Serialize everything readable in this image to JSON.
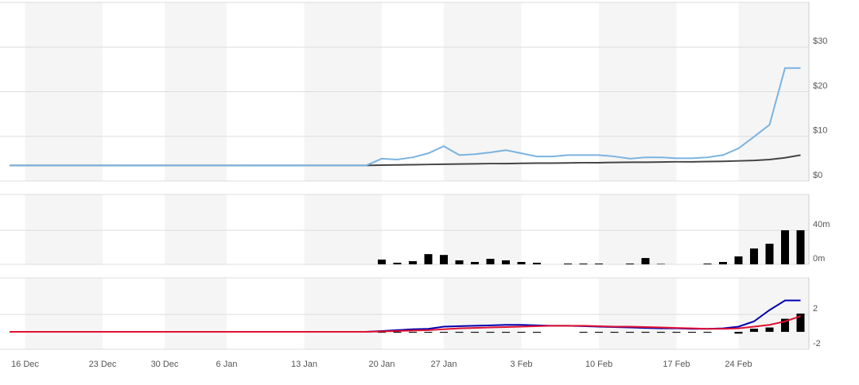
{
  "chart_data": [
    {
      "type": "line",
      "ylim": [
        0,
        40
      ],
      "yticks": [
        {
          "value": 0,
          "label": "$0"
        },
        {
          "value": 10,
          "label": "$10"
        },
        {
          "value": 20,
          "label": "$20"
        },
        {
          "value": 30,
          "label": "$30"
        }
      ],
      "grid": true,
      "series": [
        {
          "color": "#444444",
          "values": [
            3.5,
            3.5,
            3.5,
            3.5,
            3.5,
            3.5,
            3.5,
            3.5,
            3.5,
            3.5,
            3.5,
            3.5,
            3.5,
            3.5,
            3.5,
            3.5,
            3.5,
            3.5,
            3.5,
            3.5,
            3.5,
            3.5,
            3.5,
            3.5,
            3.55,
            3.6,
            3.65,
            3.7,
            3.75,
            3.8,
            3.85,
            3.9,
            3.9,
            3.95,
            4.0,
            4.0,
            4.05,
            4.1,
            4.1,
            4.15,
            4.2,
            4.2,
            4.25,
            4.3,
            4.3,
            4.35,
            4.4,
            4.5,
            4.6,
            4.8,
            5.2,
            5.8
          ]
        },
        {
          "color": "#7ab3e0",
          "values": [
            3.5,
            3.5,
            3.5,
            3.5,
            3.5,
            3.5,
            3.5,
            3.5,
            3.5,
            3.5,
            3.5,
            3.5,
            3.5,
            3.5,
            3.5,
            3.5,
            3.5,
            3.5,
            3.5,
            3.5,
            3.5,
            3.5,
            3.5,
            3.5,
            5.0,
            4.8,
            5.3,
            6.2,
            7.8,
            5.8,
            6.0,
            6.4,
            6.9,
            6.2,
            5.5,
            5.5,
            5.8,
            5.8,
            5.8,
            5.5,
            5.0,
            5.3,
            5.3,
            5.1,
            5.1,
            5.3,
            5.8,
            7.3,
            9.9,
            12.6,
            25.3,
            25.3
          ]
        }
      ]
    },
    {
      "type": "bar",
      "ylim": [
        0,
        82
      ],
      "yticks": [
        {
          "value": 0,
          "label": "0m"
        },
        {
          "value": 40,
          "label": "40m"
        }
      ],
      "grid": true,
      "color": "#000000",
      "values": [
        0,
        0,
        0,
        0,
        0,
        0,
        0,
        0,
        0,
        0,
        0,
        0,
        0,
        0,
        0,
        0,
        0,
        0,
        0,
        0,
        0,
        0,
        0,
        0,
        5.6,
        1.9,
        3.7,
        12,
        11,
        4.7,
        2.8,
        6.5,
        4.7,
        2.8,
        1.9,
        0,
        0.9,
        0.9,
        0.9,
        0,
        0.9,
        7.4,
        0.5,
        0,
        0,
        0.9,
        2.8,
        9.3,
        18.6,
        24.2,
        40,
        40
      ]
    },
    {
      "type": "macd",
      "ylim": [
        -2,
        6.2
      ],
      "yticks": [
        {
          "value": 2,
          "label": "2"
        },
        {
          "value": -2,
          "label": "-2"
        }
      ],
      "grid": true,
      "categories": [
        null,
        "16 Dec",
        null,
        null,
        null,
        null,
        "23 Dec",
        null,
        null,
        null,
        "30 Dec",
        null,
        null,
        null,
        "6 Jan",
        null,
        null,
        null,
        null,
        "13 Jan",
        null,
        null,
        null,
        null,
        "20 Jan",
        null,
        null,
        null,
        "27 Jan",
        null,
        null,
        null,
        null,
        "3 Feb",
        null,
        null,
        null,
        null,
        "10 Feb",
        null,
        null,
        null,
        null,
        "17 Feb",
        null,
        null,
        null,
        "24 Feb",
        null,
        null,
        null,
        null
      ],
      "histogram": {
        "color": "#000000",
        "values": [
          0,
          0,
          0,
          0,
          0,
          0,
          0,
          0,
          0,
          0,
          0,
          0,
          0,
          0,
          0,
          0,
          0,
          0,
          0,
          0,
          0,
          0,
          0,
          0,
          -0.1,
          -0.1,
          -0.1,
          -0.1,
          -0.1,
          -0.1,
          -0.1,
          -0.1,
          -0.1,
          -0.1,
          -0.1,
          0,
          0,
          -0.1,
          -0.1,
          -0.1,
          -0.1,
          -0.1,
          -0.1,
          -0.1,
          -0.1,
          -0.1,
          0,
          -0.2,
          0.36,
          0.5,
          1.5,
          2.1
        ]
      },
      "series": [
        {
          "color": "#0000b0",
          "values": [
            0,
            0,
            0,
            0,
            0,
            0,
            0,
            0,
            0,
            0,
            0,
            0,
            0,
            0,
            0,
            0,
            0,
            0,
            0,
            0,
            0,
            0,
            0,
            0,
            0.1,
            0.2,
            0.3,
            0.35,
            0.6,
            0.65,
            0.7,
            0.75,
            0.8,
            0.8,
            0.75,
            0.7,
            0.7,
            0.65,
            0.6,
            0.55,
            0.5,
            0.45,
            0.4,
            0.4,
            0.35,
            0.35,
            0.4,
            0.6,
            1.2,
            2.5,
            3.6,
            3.6
          ]
        },
        {
          "color": "#e01030",
          "values": [
            0,
            0,
            0,
            0,
            0,
            0,
            0,
            0,
            0,
            0,
            0,
            0,
            0,
            0,
            0,
            0,
            0,
            0,
            0,
            0,
            0,
            0,
            0,
            0,
            0.05,
            0.1,
            0.15,
            0.2,
            0.3,
            0.4,
            0.45,
            0.5,
            0.55,
            0.6,
            0.65,
            0.7,
            0.7,
            0.7,
            0.65,
            0.6,
            0.6,
            0.55,
            0.5,
            0.45,
            0.4,
            0.35,
            0.35,
            0.4,
            0.6,
            0.8,
            1.2,
            1.8
          ]
        }
      ]
    }
  ]
}
